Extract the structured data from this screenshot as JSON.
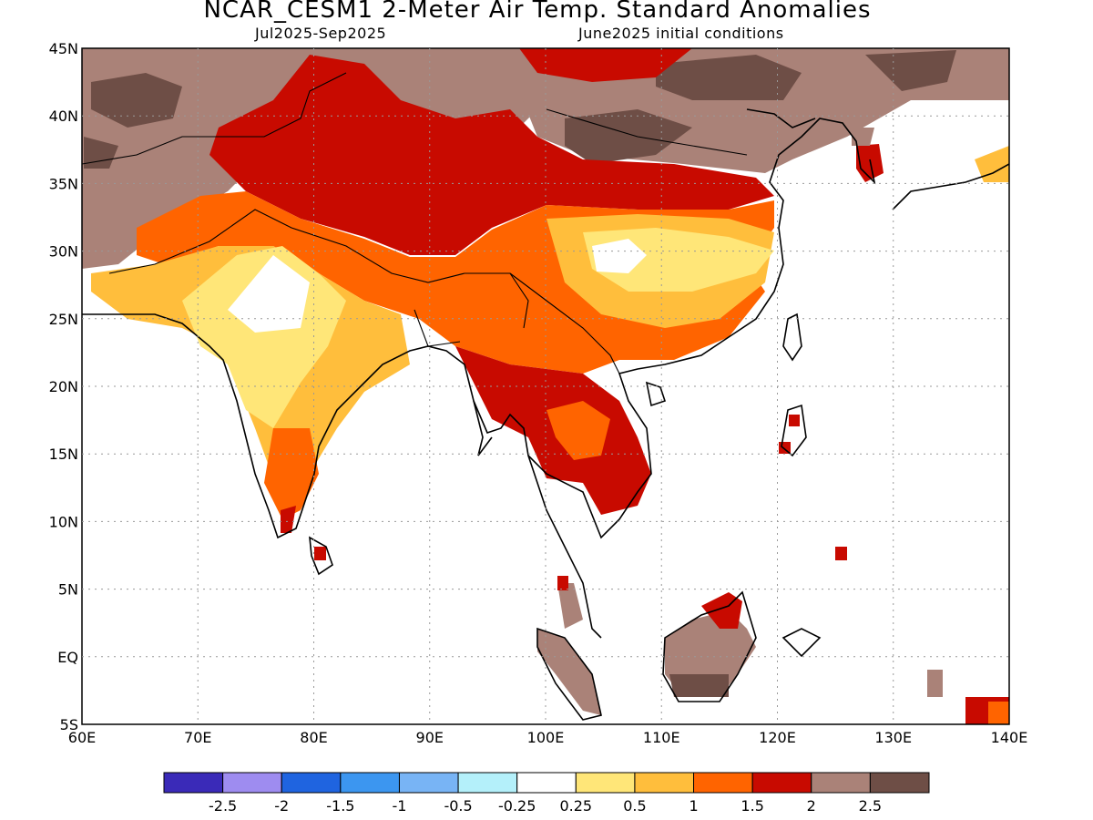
{
  "title": "NCAR_CESM1 2-Meter Air Temp. Standard Anomalies",
  "period": "Jul2025-Sep2025",
  "init": "June2025 initial conditions",
  "lon_ticks": [
    "60E",
    "70E",
    "80E",
    "90E",
    "100E",
    "110E",
    "120E",
    "130E",
    "140E"
  ],
  "lat_ticks": [
    "45N",
    "40N",
    "35N",
    "30N",
    "25N",
    "20N",
    "15N",
    "10N",
    "5N",
    "EQ",
    "5S"
  ],
  "colorbar": {
    "colors": [
      "#3a2ab8",
      "#9e8cf0",
      "#1f64e0",
      "#3c96f0",
      "#78b4f5",
      "#b4f0fa",
      "#ffffff",
      "#ffe678",
      "#ffbe3c",
      "#ff6400",
      "#c80a00",
      "#aa8278",
      "#6e4e46"
    ],
    "labels": [
      "-2.5",
      "-2",
      "-1.5",
      "-1",
      "-0.5",
      "-0.25",
      "0.25",
      "0.5",
      "1",
      "1.5",
      "2",
      "2.5"
    ]
  }
}
